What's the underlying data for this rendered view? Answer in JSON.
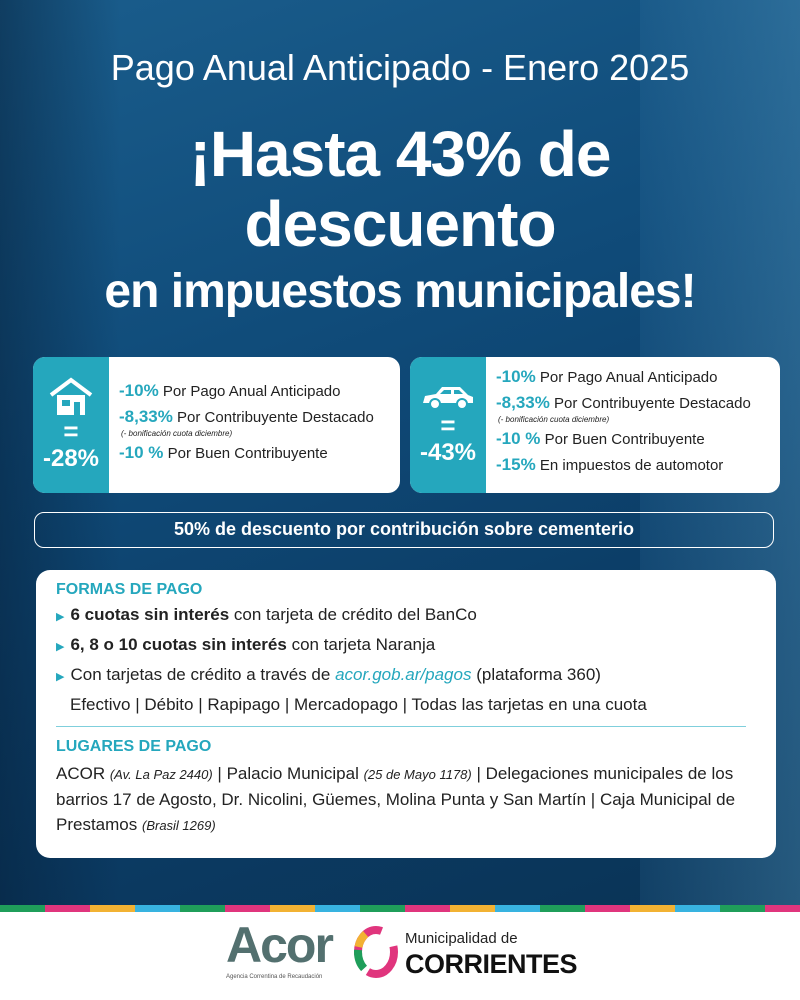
{
  "header": {
    "title": "Pago Anual Anticipado - Enero 2025",
    "headline_1": "¡Hasta 43% de",
    "headline_2": "descuento",
    "headline_3": "en impuestos municipales!"
  },
  "cards": [
    {
      "icon": "house-icon",
      "equals": "=",
      "total": "-28%",
      "items": [
        {
          "pct": "-10%",
          "label": "Por Pago Anual Anticipado"
        },
        {
          "pct": "-8,33%",
          "label": "Por Contribuyente Destacado",
          "note": "(- bonificación cuota diciembre)"
        },
        {
          "pct": "-10 %",
          "label": "Por Buen Contribuyente"
        }
      ]
    },
    {
      "icon": "car-icon",
      "equals": "=",
      "total": "-43%",
      "items": [
        {
          "pct": "-10%",
          "label": "Por Pago Anual Anticipado"
        },
        {
          "pct": "-8,33%",
          "label": "Por Contribuyente Destacado",
          "note": "(- bonificación cuota diciembre)"
        },
        {
          "pct": "-10 %",
          "label": "Por Buen Contribuyente"
        },
        {
          "pct": "-15%",
          "label": "En impuestos de automotor"
        }
      ]
    }
  ],
  "banner": "50% de descuento por contribución sobre cementerio",
  "formas": {
    "title": "FORMAS DE PAGO",
    "items": [
      {
        "bold": "6 cuotas sin interés",
        "text": " con tarjeta de crédito del BanCo"
      },
      {
        "bold": "6, 8 o 10 cuotas sin interés",
        "text": " con tarjeta Naranja"
      },
      {
        "text": "Con tarjetas de crédito a través de ",
        "link": "acor.gob.ar/pagos",
        "after": " (plataforma 360)"
      }
    ],
    "other": "Efectivo | Débito | Rapipago | Mercadopago | Todas las tarjetas en una cuota"
  },
  "lugares": {
    "title": "LUGARES DE PAGO",
    "a": "ACOR ",
    "a_addr": "(Av. La Paz 2440)",
    "b": " | Palacio Municipal ",
    "b_addr": "(25 de Mayo 1178)",
    "c": " | Delegaciones municipales de los barrios 17 de Agosto, Dr. Nicolini, Güemes, Molina Punta y San Martín | Caja Municipal de Prestamos ",
    "c_addr": "(Brasil 1269)"
  },
  "footer": {
    "acor": "Acor",
    "acor_sub": "Agencia Correntina de Recaudación",
    "mun": "Municipalidad de",
    "cor": "CORRIENTES"
  },
  "colors": {
    "accent": "#25a7bd",
    "background": "#0f4a78"
  }
}
